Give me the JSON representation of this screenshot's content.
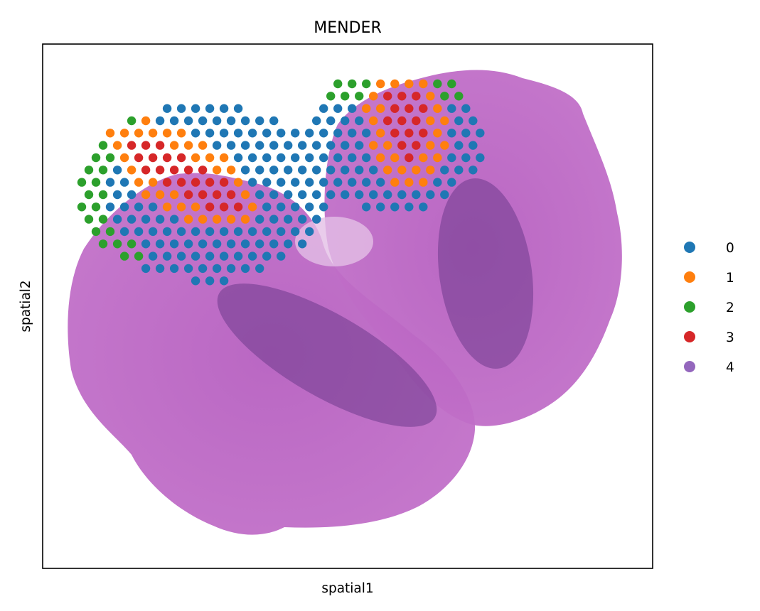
{
  "chart_data": {
    "type": "scatter",
    "title": "MENDER",
    "xlabel": "spatial1",
    "ylabel": "spatial2",
    "xticks": [],
    "yticks": [],
    "grid": false,
    "legend_position": "right",
    "background": "H&E tissue section image (two lobes) behind spot grid",
    "series": [
      {
        "name": "0",
        "color": "#1f77b4"
      },
      {
        "name": "1",
        "color": "#ff7f0e"
      },
      {
        "name": "2",
        "color": "#2ca02c"
      },
      {
        "name": "3",
        "color": "#d62728"
      },
      {
        "name": "4",
        "color": "#9467bd"
      }
    ],
    "domains": [
      {
        "label": "3",
        "shape": "core",
        "center": [
          0.53,
          0.55
        ],
        "semi_axes": [
          0.33,
          0.09
        ],
        "rotation_deg": 30
      },
      {
        "label": "1",
        "shape": "ring",
        "center": [
          0.53,
          0.55
        ],
        "semi_axes": [
          0.4,
          0.19
        ],
        "rotation_deg": 30
      },
      {
        "label": "3",
        "shape": "core",
        "center": [
          1.57,
          0.31
        ],
        "semi_axes": [
          0.1,
          0.2
        ],
        "rotation_deg": -8
      },
      {
        "label": "1",
        "shape": "ring",
        "center": [
          1.57,
          0.31
        ],
        "semi_axes": [
          0.19,
          0.3
        ],
        "rotation_deg": -8
      },
      {
        "label": "4",
        "shape": "band",
        "center": [
          0.98,
          0.15
        ],
        "semi_axes": [
          0.17,
          0.08
        ],
        "rotation_deg": 10
      },
      {
        "label": "2",
        "shape": "rim",
        "lobe": "left",
        "side": "west"
      },
      {
        "label": "2",
        "shape": "rim",
        "lobe": "right",
        "side": "north"
      },
      {
        "label": "0",
        "shape": "fill",
        "lobe": "both"
      }
    ]
  }
}
